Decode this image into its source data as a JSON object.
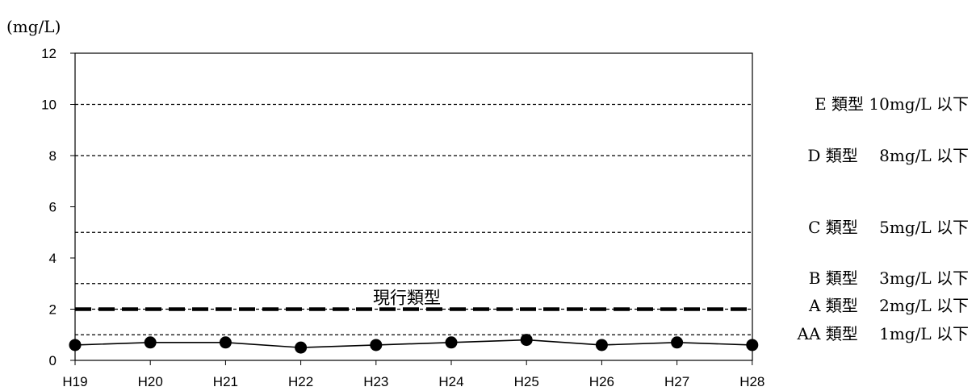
{
  "chart_data": {
    "type": "line",
    "ylabel": "(mg/L)",
    "categories": [
      "H19",
      "H20",
      "H21",
      "H22",
      "H23",
      "H24",
      "H25",
      "H26",
      "H27",
      "H28"
    ],
    "series": [
      {
        "values": [
          0.6,
          0.7,
          0.7,
          0.5,
          0.6,
          0.7,
          0.8,
          0.6,
          0.7,
          0.6
        ]
      }
    ],
    "ylim": [
      0,
      12
    ],
    "yticks": [
      0,
      2,
      4,
      6,
      8,
      10,
      12
    ],
    "grid": false,
    "reference_lines": [
      {
        "value": 10,
        "label": "E 類型  10mg/L 以下",
        "style": "dashed"
      },
      {
        "value": 8,
        "label": "D 類型　 8mg/L 以下",
        "style": "dashed"
      },
      {
        "value": 5,
        "label": "C 類型　 5mg/L 以下",
        "style": "dashed"
      },
      {
        "value": 3,
        "label": "B 類型　 3mg/L 以下",
        "style": "dashed"
      },
      {
        "value": 2,
        "label": "A 類型　 2mg/L 以下",
        "style": "dashed"
      },
      {
        "value": 1,
        "label": "AA 類型　 1mg/L 以下",
        "style": "dashed"
      }
    ],
    "current_class": {
      "value": 2,
      "label": "現行類型"
    }
  }
}
